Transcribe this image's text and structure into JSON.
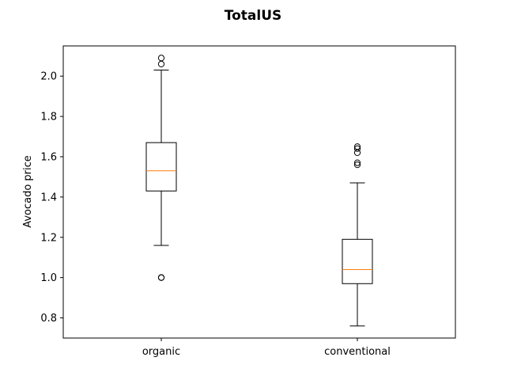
{
  "chart_data": {
    "type": "box",
    "title": "TotalUS",
    "xlabel": "",
    "ylabel": "Avocado price",
    "ylim": [
      0.7,
      2.15
    ],
    "yticks": [
      0.8,
      1.0,
      1.2,
      1.4,
      1.6,
      1.8,
      2.0
    ],
    "ytick_labels": [
      "0.8",
      "1.0",
      "1.2",
      "1.4",
      "1.6",
      "1.8",
      "2.0"
    ],
    "categories": [
      "organic",
      "conventional"
    ],
    "grid": false,
    "colors": {
      "box": "#000000",
      "median": "#ff7f0e",
      "flier": "#000000"
    },
    "boxes": [
      {
        "category": "organic",
        "whisker_low": 1.16,
        "q1": 1.43,
        "median": 1.53,
        "q3": 1.67,
        "whisker_high": 2.03,
        "fliers": [
          2.09,
          2.06,
          1.0,
          1.0,
          1.0
        ]
      },
      {
        "category": "conventional",
        "whisker_low": 0.76,
        "q1": 0.97,
        "median": 1.04,
        "q3": 1.19,
        "whisker_high": 1.47,
        "fliers": [
          1.65,
          1.64,
          1.62,
          1.57,
          1.56
        ]
      }
    ]
  }
}
